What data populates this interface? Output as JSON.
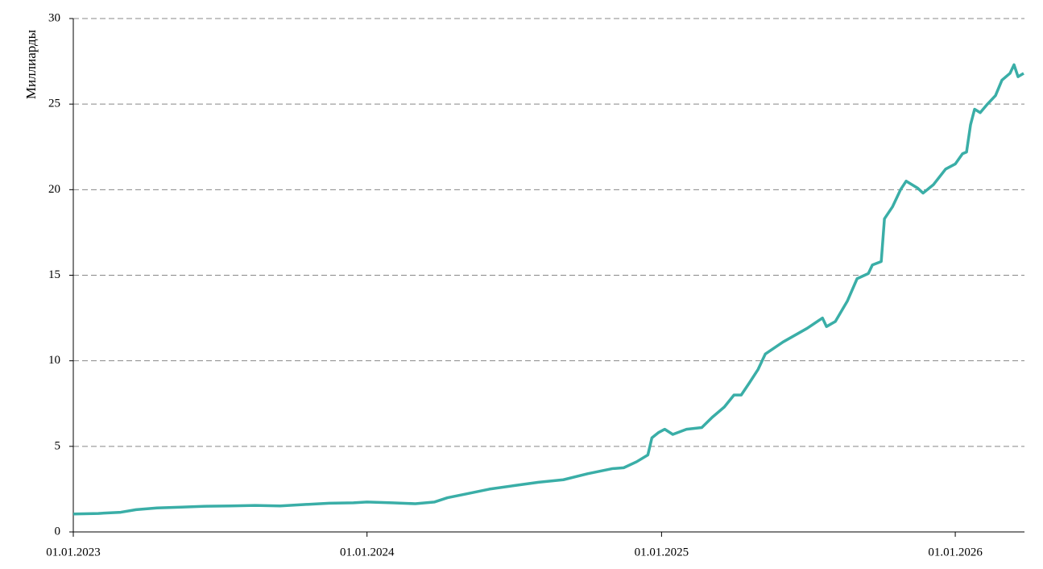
{
  "chart_data": {
    "type": "line",
    "y_label": "Миллиарды",
    "x": [
      "2023-01-01",
      "2023-02-01",
      "2023-03-01",
      "2023-03-20",
      "2023-04-15",
      "2023-05-15",
      "2023-06-15",
      "2023-07-15",
      "2023-08-15",
      "2023-09-15",
      "2023-10-15",
      "2023-11-15",
      "2023-12-15",
      "2024-01-01",
      "2024-02-01",
      "2024-03-01",
      "2024-03-25",
      "2024-04-10",
      "2024-05-01",
      "2024-06-01",
      "2024-07-01",
      "2024-08-01",
      "2024-09-01",
      "2024-10-01",
      "2024-11-01",
      "2024-11-15",
      "2024-12-01",
      "2024-12-15",
      "2024-12-20",
      "2024-12-28",
      "2025-01-05",
      "2025-01-15",
      "2025-02-01",
      "2025-02-20",
      "2025-03-05",
      "2025-03-20",
      "2025-04-01",
      "2025-04-10",
      "2025-04-20",
      "2025-05-01",
      "2025-05-10",
      "2025-06-01",
      "2025-07-01",
      "2025-07-20",
      "2025-07-25",
      "2025-08-05",
      "2025-08-20",
      "2025-09-01",
      "2025-09-15",
      "2025-09-20",
      "2025-10-01",
      "2025-10-05",
      "2025-10-15",
      "2025-10-25",
      "2025-11-01",
      "2025-11-15",
      "2025-11-22",
      "2025-12-05",
      "2025-12-20",
      "2026-01-01",
      "2026-01-10",
      "2026-01-15",
      "2026-01-20",
      "2026-01-25",
      "2026-02-01",
      "2026-02-10",
      "2026-02-20",
      "2026-02-28",
      "2026-03-10",
      "2026-03-15",
      "2026-03-20",
      "2026-03-27"
    ],
    "series": [
      {
        "name": "Миллиарды",
        "color": "#3aaea7",
        "values": [
          1.05,
          1.08,
          1.15,
          1.3,
          1.4,
          1.45,
          1.5,
          1.52,
          1.55,
          1.52,
          1.6,
          1.68,
          1.7,
          1.75,
          1.7,
          1.65,
          1.75,
          2.0,
          2.2,
          2.5,
          2.7,
          2.9,
          3.05,
          3.4,
          3.7,
          3.75,
          4.1,
          4.5,
          5.5,
          5.8,
          6.0,
          5.7,
          6.0,
          6.1,
          6.7,
          7.3,
          8.0,
          8.0,
          8.7,
          9.5,
          10.4,
          11.1,
          11.9,
          12.5,
          12.0,
          12.3,
          13.5,
          14.8,
          15.1,
          15.6,
          15.8,
          18.3,
          19.0,
          20.0,
          20.5,
          20.1,
          19.8,
          20.3,
          21.2,
          21.5,
          22.1,
          22.2,
          23.8,
          24.7,
          24.5,
          25.0,
          25.5,
          26.4,
          26.8,
          27.3,
          26.6,
          26.8
        ]
      }
    ],
    "xlim": [
      "2023-01-01",
      "2026-03-28"
    ],
    "xticks": [
      {
        "value": "2023-01-01",
        "label": "01.01.2023"
      },
      {
        "value": "2024-01-01",
        "label": "01.01.2024"
      },
      {
        "value": "2025-01-01",
        "label": "01.01.2025"
      },
      {
        "value": "2026-01-01",
        "label": "01.01.2026"
      }
    ],
    "ylim": [
      0,
      30
    ],
    "yticks": [
      0,
      5,
      10,
      15,
      20,
      25,
      30
    ],
    "grid": true
  }
}
